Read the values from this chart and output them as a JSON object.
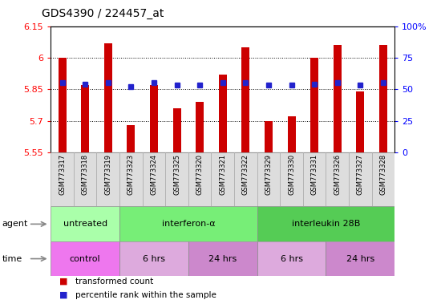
{
  "title": "GDS4390 / 224457_at",
  "samples": [
    "GSM773317",
    "GSM773318",
    "GSM773319",
    "GSM773323",
    "GSM773324",
    "GSM773325",
    "GSM773320",
    "GSM773321",
    "GSM773322",
    "GSM773329",
    "GSM773330",
    "GSM773331",
    "GSM773326",
    "GSM773327",
    "GSM773328"
  ],
  "red_values": [
    6.0,
    5.87,
    6.07,
    5.68,
    5.87,
    5.76,
    5.79,
    5.92,
    6.05,
    5.7,
    5.72,
    6.0,
    6.06,
    5.84,
    6.06
  ],
  "blue_values": [
    5.88,
    5.875,
    5.88,
    5.862,
    5.882,
    5.872,
    5.872,
    5.882,
    5.882,
    5.872,
    5.872,
    5.875,
    5.882,
    5.872,
    5.882
  ],
  "ylim_left": [
    5.55,
    6.15
  ],
  "ylim_right": [
    0,
    100
  ],
  "yticks_left": [
    5.55,
    5.7,
    5.85,
    6.0,
    6.15
  ],
  "yticks_right": [
    0,
    25,
    50,
    75,
    100
  ],
  "ytick_labels_left": [
    "5.55",
    "5.7",
    "5.85",
    "6",
    "6.15"
  ],
  "ytick_labels_right": [
    "0",
    "25",
    "50",
    "75",
    "100%"
  ],
  "bar_color": "#cc0000",
  "dot_color": "#2222cc",
  "base_value": 5.55,
  "agent_groups": [
    {
      "label": "untreated",
      "start": 0,
      "end": 3,
      "color": "#aaffaa"
    },
    {
      "label": "interferon-α",
      "start": 3,
      "end": 9,
      "color": "#77ee77"
    },
    {
      "label": "interleukin 28B",
      "start": 9,
      "end": 15,
      "color": "#55cc55"
    }
  ],
  "time_groups": [
    {
      "label": "control",
      "start": 0,
      "end": 3,
      "color": "#ee77ee"
    },
    {
      "label": "6 hrs",
      "start": 3,
      "end": 6,
      "color": "#ddaadd"
    },
    {
      "label": "24 hrs",
      "start": 6,
      "end": 9,
      "color": "#cc88cc"
    },
    {
      "label": "6 hrs",
      "start": 9,
      "end": 12,
      "color": "#ddaadd"
    },
    {
      "label": "24 hrs",
      "start": 12,
      "end": 15,
      "color": "#cc88cc"
    }
  ],
  "legend_items": [
    {
      "label": "transformed count",
      "color": "#cc0000"
    },
    {
      "label": "percentile rank within the sample",
      "color": "#2222cc"
    }
  ],
  "grid_yticks": [
    5.7,
    5.85,
    6.0
  ],
  "bar_width": 0.35,
  "dot_size": 4
}
